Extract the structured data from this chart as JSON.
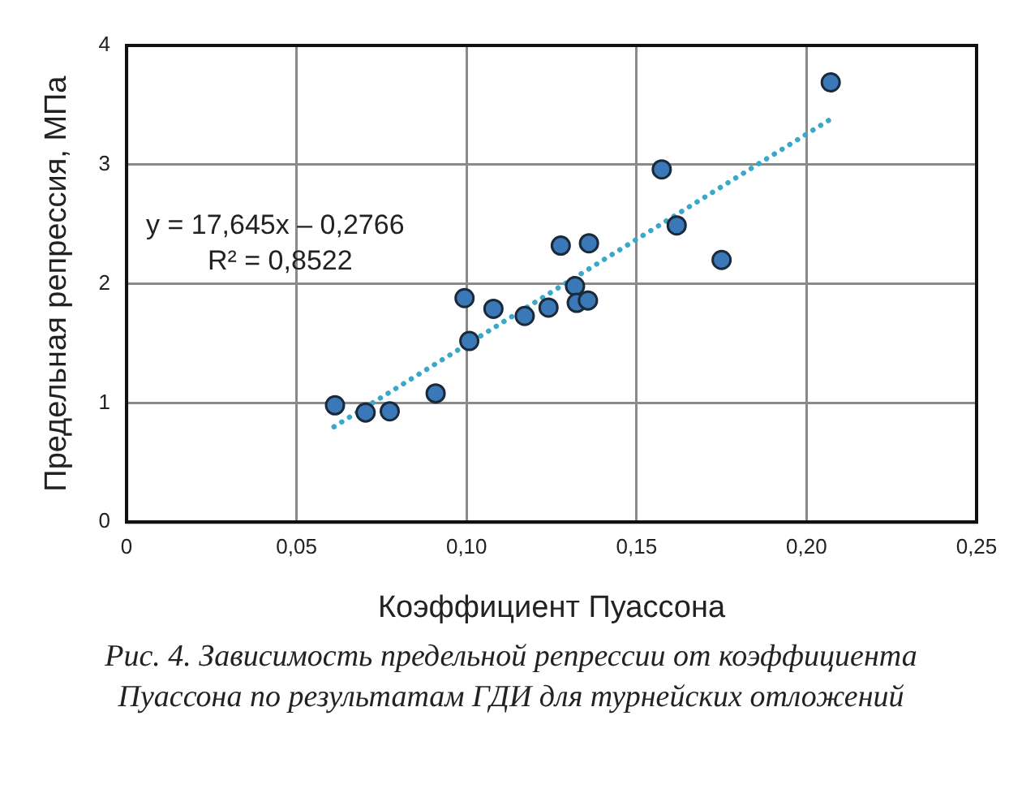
{
  "chart_data": {
    "type": "scatter",
    "xlabel": "Коэффициент Пуассона",
    "ylabel": "Предельная репрессия, МПа",
    "xlim": [
      0,
      0.25
    ],
    "xticks": [
      0,
      {
        "value": 0.05,
        "label": "0,05"
      },
      {
        "value": 0.1,
        "label": "0,10"
      },
      {
        "value": 0.15,
        "label": "0,15"
      },
      {
        "value": 0.2,
        "label": "0,20"
      },
      {
        "value": 0.25,
        "label": "0,25"
      }
    ],
    "ylim": [
      0,
      4
    ],
    "yticks": [
      0,
      1,
      2,
      3,
      4
    ],
    "grid": true,
    "legend": false,
    "marker": "circle",
    "series": [
      {
        "type": "scatter",
        "color": "#3b78b8",
        "x": [
          0.0613,
          0.0703,
          0.0774,
          0.0909,
          0.0994,
          0.1008,
          0.1079,
          0.1171,
          0.1241,
          0.1277,
          0.1319,
          0.1324,
          0.1357,
          0.136,
          0.1574,
          0.1618,
          0.175,
          0.2071
        ],
        "values": [
          0.98,
          0.92,
          0.93,
          1.08,
          1.88,
          1.52,
          1.79,
          1.73,
          1.8,
          2.32,
          1.98,
          1.84,
          1.86,
          2.34,
          2.96,
          2.49,
          2.2,
          3.69
        ]
      },
      {
        "type": "line",
        "color": "#3aa8c8",
        "x": [
          0.061,
          0.207
        ],
        "values": [
          0.8,
          3.38
        ],
        "line_style": "dotted",
        "marker": "none"
      }
    ],
    "annotations": [
      "y = 17,645x – 0,2766",
      "R² = 0,8522",
      "Рис. 4. Зависимость предельной репрессии от коэффициента Пуассона по результатам ГДИ для турнейских отложений"
    ]
  }
}
